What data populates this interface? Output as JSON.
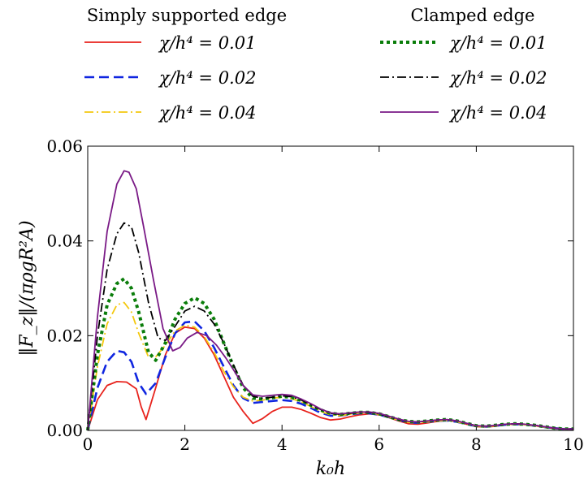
{
  "chart_data": {
    "type": "line",
    "xlabel": "k₀h",
    "ylabel": "‖F_z‖/(πρgR²A)",
    "xlim": [
      0,
      10
    ],
    "ylim": [
      0,
      0.06
    ],
    "xticks": [
      "0",
      "2",
      "4",
      "6",
      "8",
      "10"
    ],
    "yticks": [
      "0.00",
      "0.02",
      "0.04",
      "0.06"
    ],
    "legend": {
      "placement": "above-plot",
      "groups": [
        {
          "title": "Simply supported edge",
          "entries": [
            "χ/h⁴ = 0.01",
            "χ/h⁴ = 0.02",
            "χ/h⁴ = 0.04"
          ]
        },
        {
          "title": "Clamped edge",
          "entries": [
            "χ/h⁴ = 0.01",
            "χ/h⁴ = 0.02",
            "χ/h⁴ = 0.04"
          ]
        }
      ]
    },
    "series": [
      {
        "name": "χ/h⁴ = 0.01",
        "group": "Simply supported edge",
        "color": "#e8231d",
        "style": "solid",
        "x": [
          0,
          0.2,
          0.4,
          0.6,
          0.8,
          1.0,
          1.1,
          1.2,
          1.4,
          1.6,
          1.8,
          2.0,
          2.2,
          2.4,
          2.6,
          2.8,
          3.0,
          3.2,
          3.4,
          3.6,
          3.8,
          4.0,
          4.2,
          4.4,
          4.6,
          4.8,
          5.0,
          5.2,
          5.4,
          5.6,
          5.8,
          6.0,
          6.2,
          6.4,
          6.6,
          6.8,
          7.0,
          7.2,
          7.4,
          7.6,
          7.8,
          8.0,
          8.2,
          8.4,
          8.6,
          8.8,
          9.0,
          9.2,
          9.4,
          9.6,
          9.8,
          10.0
        ],
        "y": [
          0,
          0.0065,
          0.0095,
          0.0103,
          0.0102,
          0.0088,
          0.005,
          0.0023,
          0.009,
          0.016,
          0.0205,
          0.0218,
          0.0215,
          0.0195,
          0.016,
          0.0115,
          0.007,
          0.004,
          0.0015,
          0.0025,
          0.004,
          0.0049,
          0.0049,
          0.0044,
          0.0036,
          0.0027,
          0.0022,
          0.0024,
          0.0029,
          0.0033,
          0.0035,
          0.0033,
          0.0027,
          0.002,
          0.0014,
          0.0013,
          0.0016,
          0.0019,
          0.0021,
          0.0019,
          0.0013,
          0.0008,
          0.0007,
          0.0009,
          0.0012,
          0.0014,
          0.0013,
          0.001,
          0.0007,
          0.0004,
          0.0003,
          0.0003
        ]
      },
      {
        "name": "χ/h⁴ = 0.02",
        "group": "Simply supported edge",
        "color": "#1026e0",
        "style": "dashed",
        "x": [
          0,
          0.2,
          0.4,
          0.6,
          0.75,
          0.9,
          1.05,
          1.2,
          1.4,
          1.6,
          1.8,
          2.0,
          2.2,
          2.4,
          2.6,
          2.8,
          3.0,
          3.2,
          3.4,
          3.6,
          3.8,
          4.0,
          4.2,
          4.4,
          4.6,
          4.8,
          5.0,
          5.2,
          5.4,
          5.6,
          5.8,
          6.0,
          6.2,
          6.4,
          6.6,
          6.8,
          7.0,
          7.2,
          7.4,
          7.6,
          7.8,
          8.0,
          8.2,
          8.4,
          8.6,
          8.8,
          9.0,
          9.2,
          9.4,
          9.6,
          9.8,
          10.0
        ],
        "y": [
          0,
          0.009,
          0.0145,
          0.0168,
          0.0165,
          0.0145,
          0.01,
          0.0077,
          0.01,
          0.0155,
          0.0205,
          0.0228,
          0.023,
          0.021,
          0.0175,
          0.0135,
          0.0095,
          0.0068,
          0.0058,
          0.006,
          0.0062,
          0.0064,
          0.0062,
          0.0056,
          0.0047,
          0.0037,
          0.0031,
          0.0031,
          0.0034,
          0.0036,
          0.0036,
          0.0033,
          0.0028,
          0.0022,
          0.0017,
          0.0016,
          0.0018,
          0.002,
          0.0021,
          0.0018,
          0.0013,
          0.0009,
          0.0008,
          0.001,
          0.0012,
          0.0013,
          0.0012,
          0.001,
          0.0007,
          0.0005,
          0.0003,
          0.0003
        ]
      },
      {
        "name": "χ/h⁴ = 0.04",
        "group": "Simply supported edge",
        "color": "#f4c80e",
        "style": "dashdot",
        "x": [
          0,
          0.2,
          0.4,
          0.6,
          0.75,
          0.9,
          1.05,
          1.25,
          1.4,
          1.6,
          1.8,
          2.0,
          2.2,
          2.4,
          2.6,
          2.8,
          3.0,
          3.2,
          3.4,
          3.6,
          3.8,
          4.0,
          4.2,
          4.4,
          4.6,
          4.8,
          5.0,
          5.2,
          5.4,
          5.6,
          5.8,
          6.0,
          6.2,
          6.4,
          6.6,
          6.8,
          7.0,
          7.2,
          7.4,
          7.6,
          7.8,
          8.0,
          8.2,
          8.4,
          8.6,
          8.8,
          9.0,
          9.2,
          9.4,
          9.6,
          9.8,
          10.0
        ],
        "y": [
          0,
          0.0135,
          0.0225,
          0.0265,
          0.027,
          0.025,
          0.0205,
          0.0155,
          0.0155,
          0.018,
          0.021,
          0.0222,
          0.0218,
          0.0198,
          0.0165,
          0.0125,
          0.0092,
          0.007,
          0.0062,
          0.0064,
          0.0068,
          0.007,
          0.0067,
          0.006,
          0.005,
          0.004,
          0.0033,
          0.0031,
          0.0034,
          0.0037,
          0.0037,
          0.0034,
          0.0028,
          0.0022,
          0.0017,
          0.0016,
          0.0018,
          0.002,
          0.0021,
          0.0018,
          0.0013,
          0.0009,
          0.0008,
          0.001,
          0.0012,
          0.0013,
          0.0012,
          0.001,
          0.0007,
          0.0005,
          0.0003,
          0.0003
        ]
      },
      {
        "name": "χ/h⁴ = 0.01",
        "group": "Clamped edge",
        "color": "#0a7d0a",
        "style": "dotted",
        "x": [
          0,
          0.2,
          0.4,
          0.6,
          0.75,
          0.9,
          1.05,
          1.25,
          1.4,
          1.6,
          1.8,
          2.0,
          2.2,
          2.4,
          2.6,
          2.8,
          3.0,
          3.2,
          3.4,
          3.6,
          3.8,
          4.0,
          4.2,
          4.4,
          4.6,
          4.8,
          5.0,
          5.2,
          5.4,
          5.6,
          5.8,
          6.0,
          6.2,
          6.4,
          6.6,
          6.8,
          7.0,
          7.2,
          7.4,
          7.6,
          7.8,
          8.0,
          8.2,
          8.4,
          8.6,
          8.8,
          9.0,
          9.2,
          9.4,
          9.6,
          9.8,
          10.0
        ],
        "y": [
          0,
          0.016,
          0.0265,
          0.031,
          0.032,
          0.03,
          0.025,
          0.0165,
          0.0148,
          0.0185,
          0.0235,
          0.0268,
          0.028,
          0.0268,
          0.0235,
          0.0185,
          0.0135,
          0.009,
          0.0068,
          0.0066,
          0.0069,
          0.0072,
          0.007,
          0.0063,
          0.0053,
          0.0043,
          0.0036,
          0.0034,
          0.0036,
          0.0038,
          0.0038,
          0.0035,
          0.0029,
          0.0023,
          0.0019,
          0.0018,
          0.002,
          0.0022,
          0.0023,
          0.002,
          0.0015,
          0.001,
          0.0009,
          0.0011,
          0.0013,
          0.0014,
          0.0013,
          0.0011,
          0.0008,
          0.0005,
          0.0003,
          0.0003
        ]
      },
      {
        "name": "χ/h⁴ = 0.02",
        "group": "Clamped edge",
        "color": "#000000",
        "style": "dashdot",
        "x": [
          0,
          0.2,
          0.4,
          0.6,
          0.75,
          0.9,
          1.05,
          1.25,
          1.45,
          1.6,
          1.8,
          2.0,
          2.2,
          2.4,
          2.6,
          2.8,
          3.0,
          3.2,
          3.4,
          3.6,
          3.8,
          4.0,
          4.2,
          4.4,
          4.6,
          4.8,
          5.0,
          5.2,
          5.4,
          5.6,
          5.8,
          6.0,
          6.2,
          6.4,
          6.6,
          6.8,
          7.0,
          7.2,
          7.4,
          7.6,
          7.8,
          8.0,
          8.2,
          8.4,
          8.6,
          8.8,
          9.0,
          9.2,
          9.4,
          9.6,
          9.8,
          10.0
        ],
        "y": [
          0,
          0.02,
          0.034,
          0.0415,
          0.0438,
          0.043,
          0.0375,
          0.027,
          0.0195,
          0.019,
          0.022,
          0.0252,
          0.0262,
          0.0252,
          0.0225,
          0.0185,
          0.0138,
          0.0095,
          0.0072,
          0.0068,
          0.007,
          0.0073,
          0.0071,
          0.0064,
          0.0054,
          0.0044,
          0.0036,
          0.0034,
          0.0036,
          0.0038,
          0.0038,
          0.0035,
          0.0029,
          0.0023,
          0.0019,
          0.0018,
          0.002,
          0.0022,
          0.0023,
          0.002,
          0.0015,
          0.001,
          0.0009,
          0.0011,
          0.0013,
          0.0014,
          0.0013,
          0.0011,
          0.0008,
          0.0005,
          0.0003,
          0.0003
        ]
      },
      {
        "name": "χ/h⁴ = 0.04",
        "group": "Clamped edge",
        "color": "#7a1a86",
        "style": "solid",
        "x": [
          0,
          0.2,
          0.4,
          0.6,
          0.75,
          0.85,
          1.0,
          1.15,
          1.35,
          1.55,
          1.75,
          1.9,
          2.05,
          2.25,
          2.45,
          2.65,
          2.85,
          3.0,
          3.2,
          3.4,
          3.6,
          3.8,
          4.0,
          4.2,
          4.4,
          4.6,
          4.8,
          5.0,
          5.2,
          5.4,
          5.6,
          5.8,
          6.0,
          6.2,
          6.4,
          6.6,
          6.8,
          7.0,
          7.2,
          7.4,
          7.6,
          7.8,
          8.0,
          8.2,
          8.4,
          8.6,
          8.8,
          9.0,
          9.2,
          9.4,
          9.6,
          9.8,
          10.0
        ],
        "y": [
          0,
          0.024,
          0.042,
          0.052,
          0.0548,
          0.0545,
          0.051,
          0.043,
          0.032,
          0.0215,
          0.0168,
          0.0175,
          0.0195,
          0.0207,
          0.02,
          0.018,
          0.0152,
          0.0128,
          0.0095,
          0.0075,
          0.0072,
          0.0074,
          0.0076,
          0.0074,
          0.0066,
          0.0056,
          0.0045,
          0.0037,
          0.0035,
          0.0037,
          0.0039,
          0.0039,
          0.0036,
          0.003,
          0.0024,
          0.0019,
          0.0018,
          0.002,
          0.0022,
          0.0023,
          0.002,
          0.0015,
          0.001,
          0.0009,
          0.0011,
          0.0013,
          0.0014,
          0.0013,
          0.0011,
          0.0008,
          0.0005,
          0.0003,
          0.0003
        ]
      }
    ]
  }
}
